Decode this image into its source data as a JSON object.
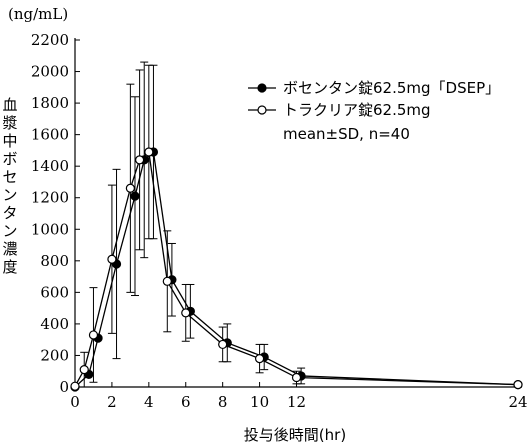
{
  "chart_data": {
    "type": "line",
    "unit_label": "(ng/mL)",
    "xlabel": "投与後時間(hr)",
    "ylabel": "血漿中ボセンタン濃度",
    "xlim": [
      0,
      24
    ],
    "ylim": [
      0,
      2200
    ],
    "xticks": [
      0,
      2,
      4,
      6,
      8,
      10,
      12,
      24
    ],
    "yticks": [
      0,
      200,
      400,
      600,
      800,
      1000,
      1200,
      1400,
      1600,
      1800,
      2000,
      2200
    ],
    "legend": {
      "position": "top-right",
      "entries": [
        {
          "label": "ボセンタン錠62.5mg「DSEP」",
          "marker": "filled-circle"
        },
        {
          "label": "トラクリア錠62.5mg",
          "marker": "open-circle"
        }
      ],
      "note": "mean±SD, n=40"
    },
    "series": [
      {
        "label": "ボセンタン錠62.5mg「DSEP」",
        "marker": "filled",
        "x": [
          0,
          0.75,
          1.25,
          2.25,
          3.25,
          3.75,
          4.25,
          5.25,
          6.25,
          8.25,
          10.25,
          12.25,
          24
        ],
        "y": [
          0,
          80,
          310,
          780,
          1210,
          1440,
          1490,
          680,
          480,
          280,
          190,
          70,
          15
        ],
        "sd": [
          0,
          0,
          0,
          600,
          630,
          620,
          550,
          230,
          170,
          120,
          80,
          50,
          0
        ]
      },
      {
        "label": "トラクリア錠62.5mg",
        "marker": "open",
        "x": [
          0,
          0.5,
          1,
          2,
          3,
          3.5,
          4,
          5,
          6,
          8,
          10,
          12,
          24
        ],
        "y": [
          5,
          110,
          330,
          810,
          1260,
          1440,
          1490,
          670,
          470,
          270,
          180,
          60,
          15
        ],
        "sd": [
          0,
          110,
          300,
          470,
          660,
          570,
          550,
          320,
          180,
          110,
          90,
          40,
          0
        ]
      }
    ]
  }
}
